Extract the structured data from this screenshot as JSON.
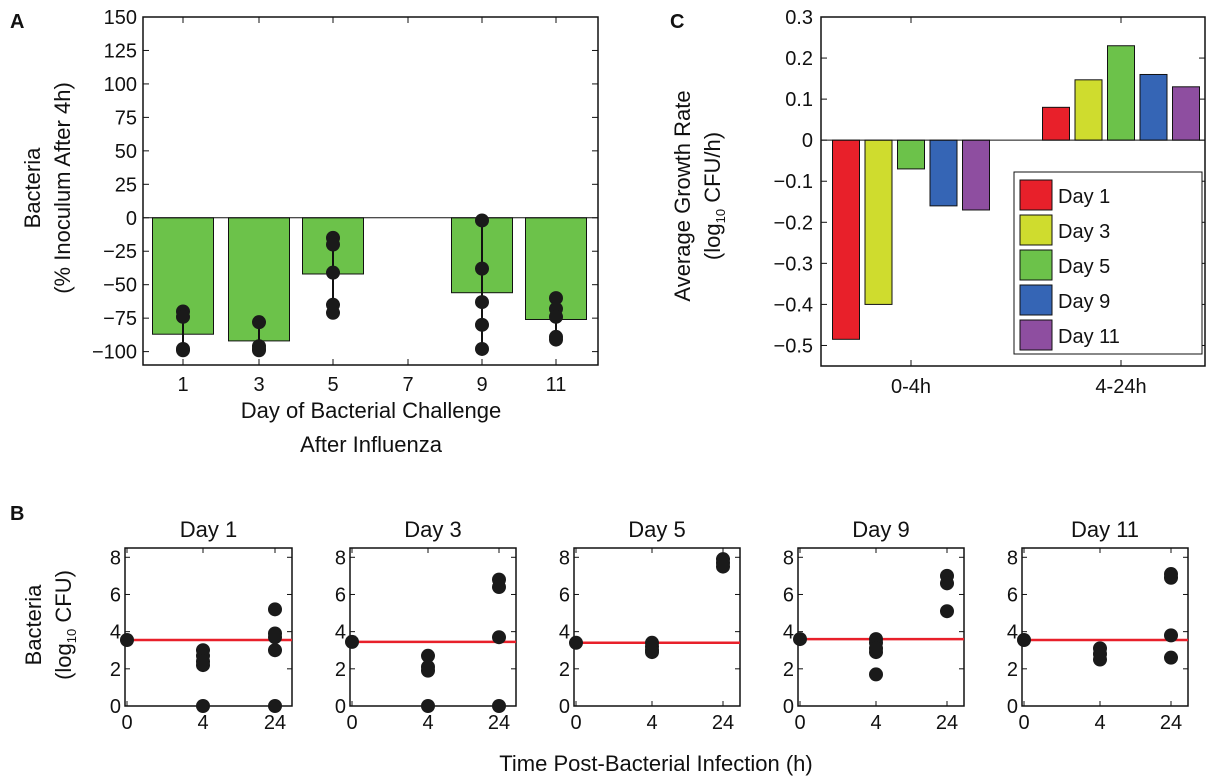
{
  "panels": {
    "a": "A",
    "b": "B",
    "c": "C"
  },
  "chart_data": [
    {
      "id": "A",
      "type": "bar",
      "categories": [
        "1",
        "3",
        "5",
        "7",
        "9",
        "11"
      ],
      "values": [
        -87,
        -92,
        -42,
        null,
        -56,
        -76
      ],
      "points": [
        [
          -70,
          -74,
          -98,
          -99
        ],
        [
          -78,
          -96,
          -98,
          -99
        ],
        [
          -15,
          -20,
          -41,
          -65,
          -71
        ],
        [],
        [
          -2,
          -38,
          -63,
          -80,
          -98
        ],
        [
          -60,
          -68,
          -74,
          -89,
          -91
        ]
      ],
      "bar_color": "#6cc24a",
      "ylim": [
        -110,
        150
      ],
      "yticks": [
        150,
        125,
        100,
        75,
        50,
        25,
        0,
        -25,
        -50,
        -75,
        -100
      ],
      "ytick_labels": [
        "150",
        "125",
        "100",
        "75",
        "50",
        "25",
        "0",
        "−25",
        "−50",
        "−75",
        "−100"
      ],
      "ylabel": [
        "Bacteria",
        "(% Inoculum After 4h)"
      ],
      "xlabel": [
        "Day of Bacterial Challenge",
        "After Influenza"
      ]
    },
    {
      "id": "C",
      "type": "bar",
      "categories": [
        "0-4h",
        "4-24h"
      ],
      "series": [
        {
          "name": "Day 1",
          "color": "#e8202a",
          "values": [
            -0.485,
            0.08
          ]
        },
        {
          "name": "Day 3",
          "color": "#cfdc2e",
          "values": [
            -0.4,
            0.147
          ]
        },
        {
          "name": "Day 5",
          "color": "#6cc24a",
          "values": [
            -0.07,
            0.23
          ]
        },
        {
          "name": "Day 9",
          "color": "#3565b5",
          "values": [
            -0.16,
            0.16
          ]
        },
        {
          "name": "Day 11",
          "color": "#8e4ea0",
          "values": [
            -0.17,
            0.13
          ]
        }
      ],
      "ylim": [
        -0.55,
        0.3
      ],
      "yticks": [
        0.3,
        0.2,
        0.1,
        0,
        -0.1,
        -0.2,
        -0.3,
        -0.4,
        -0.5
      ],
      "ytick_labels": [
        "0.3",
        "0.2",
        "0.1",
        "0",
        "−0.1",
        "−0.2",
        "−0.3",
        "−0.4",
        "−0.5"
      ],
      "ylabel": [
        "Average Growth Rate",
        "(log",
        "10",
        " CFU/h)"
      ],
      "legend_position": "bottom-right"
    },
    {
      "id": "B",
      "type": "scatter",
      "xticks": [
        "0",
        "4",
        "24"
      ],
      "yticks": [
        "0",
        "2",
        "4",
        "6",
        "8"
      ],
      "ylim": [
        0,
        8.5
      ],
      "ylabel": [
        "Bacteria",
        "(log",
        "10",
        " CFU)"
      ],
      "xlabel": "Time Post-Bacterial Infection (h)",
      "line_color": "#e8202a",
      "subplots": [
        {
          "title": "Day 1",
          "line": 3.55,
          "points": {
            "0": [
              3.55
            ],
            "4": [
              3.0,
              2.7,
              2.4,
              2.2,
              0.0
            ],
            "24": [
              5.2,
              3.9,
              3.7,
              3.0,
              0.0
            ]
          }
        },
        {
          "title": "Day 3",
          "line": 3.45,
          "points": {
            "0": [
              3.45
            ],
            "4": [
              2.7,
              2.1,
              1.9,
              0.0
            ],
            "24": [
              6.8,
              6.4,
              3.7,
              0.0
            ]
          }
        },
        {
          "title": "Day 5",
          "line": 3.4,
          "points": {
            "0": [
              3.4
            ],
            "4": [
              3.4,
              3.2,
              3.0,
              2.9
            ],
            "24": [
              7.9,
              7.7,
              7.5
            ]
          }
        },
        {
          "title": "Day 9",
          "line": 3.6,
          "points": {
            "0": [
              3.6
            ],
            "4": [
              3.6,
              3.4,
              3.1,
              2.9,
              1.7
            ],
            "24": [
              7.0,
              6.6,
              5.1
            ]
          }
        },
        {
          "title": "Day 11",
          "line": 3.55,
          "points": {
            "0": [
              3.55
            ],
            "4": [
              3.1,
              2.8,
              2.5
            ],
            "24": [
              7.1,
              6.9,
              3.8,
              2.6
            ]
          }
        }
      ]
    }
  ]
}
